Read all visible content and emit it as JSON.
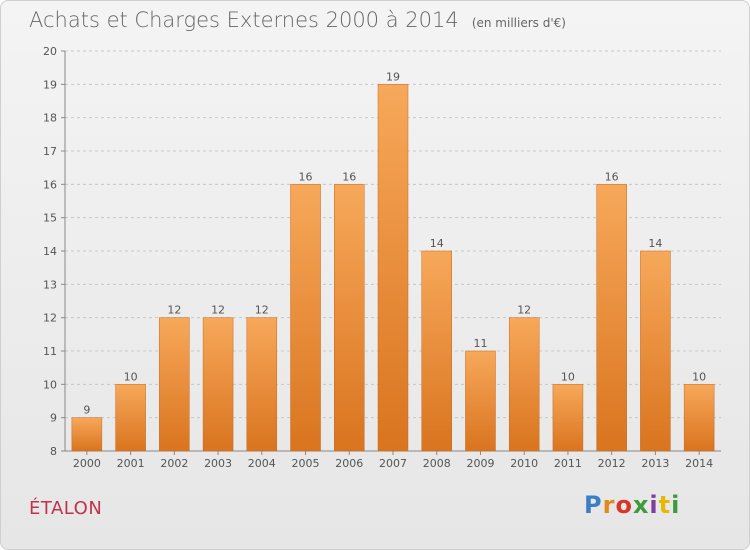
{
  "chart_data": {
    "type": "bar",
    "title": "Achats et Charges Externes 2000 à 2014",
    "subtitle": "(en milliers d'€)",
    "categories": [
      "2000",
      "2001",
      "2002",
      "2003",
      "2004",
      "2005",
      "2006",
      "2007",
      "2008",
      "2009",
      "2010",
      "2011",
      "2012",
      "2013",
      "2014"
    ],
    "values": [
      9,
      10,
      12,
      12,
      12,
      16,
      16,
      19,
      14,
      11,
      12,
      10,
      16,
      14,
      10
    ],
    "ylim": [
      8,
      20
    ],
    "yticks": [
      8,
      9,
      10,
      11,
      12,
      13,
      14,
      15,
      16,
      17,
      18,
      19,
      20
    ],
    "grid": true,
    "bar_color_top": "#f7a85a",
    "bar_color_bottom": "#d9741f"
  },
  "footer": {
    "commune": "ÉTALON",
    "logo_letters": [
      "P",
      "r",
      "o",
      "x",
      "i",
      "t",
      "i"
    ]
  }
}
